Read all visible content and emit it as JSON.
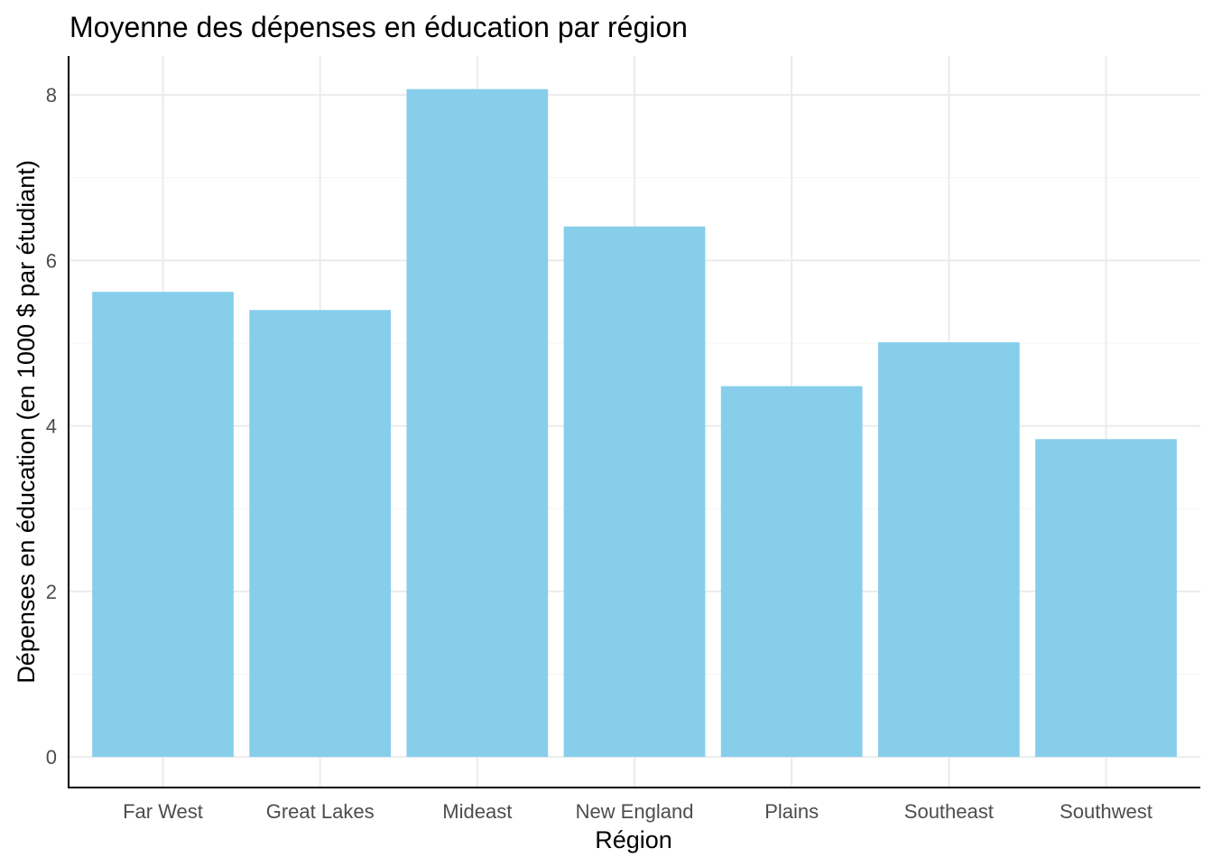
{
  "chart_data": {
    "type": "bar",
    "title": "Moyenne des dépenses en éducation par région",
    "xlabel": "Région",
    "ylabel": "Dépenses en éducation (en 1000 $ par étudiant)",
    "categories": [
      "Far West",
      "Great Lakes",
      "Mideast",
      "New England",
      "Plains",
      "Southeast",
      "Southwest"
    ],
    "values": [
      5.62,
      5.4,
      8.07,
      6.41,
      4.48,
      5.01,
      3.84
    ],
    "ylim": [
      -0.37,
      8.47
    ],
    "yticks": [
      0,
      2,
      4,
      6,
      8
    ],
    "bar_color": "#87CEEB",
    "grid": true,
    "legend": "none"
  }
}
